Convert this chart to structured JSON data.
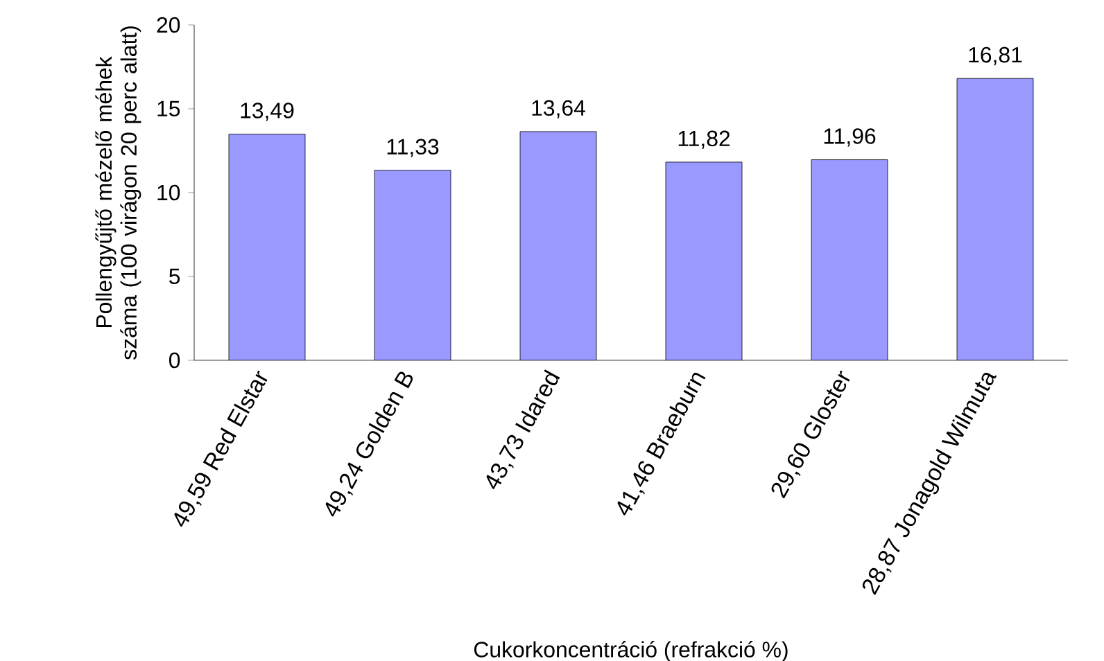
{
  "chart_data": {
    "type": "bar",
    "xlabel": "Cukorkoncentráció (refrakció %)",
    "ylabel": "Pollengyűjtő mézelő méhek száma  (100 virágon 20 perc alatt)",
    "categories": [
      "49,59 Red Elstar",
      "49,24 Golden B",
      "43,73 Idared",
      "41,46 Braeburn",
      "29,60 Gloster",
      "28,87 Jonagold Wilmuta"
    ],
    "values": [
      13.49,
      11.33,
      13.64,
      11.82,
      11.96,
      16.81
    ],
    "value_labels": [
      "13,49",
      "11,33",
      "13,64",
      "11,82",
      "11,96",
      "16,81"
    ],
    "color": "#9999ff",
    "ylim": [
      0,
      20
    ],
    "yticks": [
      0,
      5,
      10,
      15,
      20
    ],
    "grid": false
  }
}
